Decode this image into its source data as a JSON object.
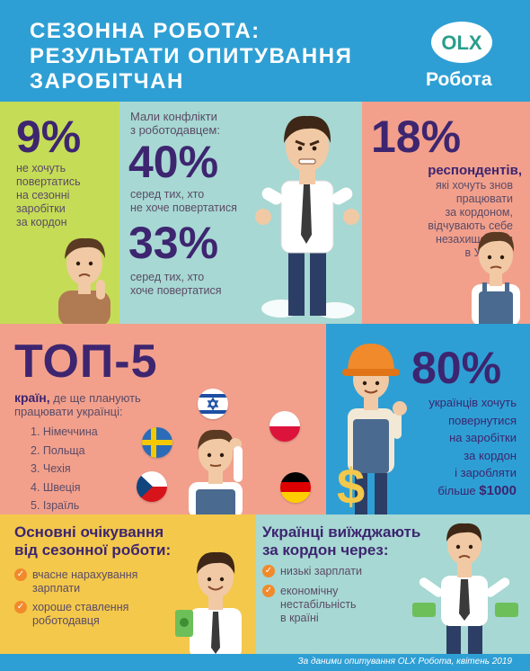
{
  "header": {
    "title_lines": [
      "СЕЗОННА РОБОТА:",
      "РЕЗУЛЬТАТИ ОПИТУВАННЯ",
      "ЗАРОБІТЧАН"
    ],
    "logo_badge": "OLX",
    "logo_text": "Робота"
  },
  "stat_9": {
    "value": "9%",
    "lines": [
      "не хочуть",
      "повертатись",
      "на сезонні",
      "заробітки",
      "за кордон"
    ]
  },
  "conflicts": {
    "intro_lines": [
      "Мали конфлікти",
      "з роботодавцем:"
    ],
    "value_a": "40%",
    "text_a_lines": [
      "серед тих, хто",
      "не хоче повертатися"
    ],
    "value_b": "33%",
    "text_b_lines": [
      "серед тих, хто",
      "хоче повертатися"
    ]
  },
  "stat_18": {
    "value": "18%",
    "head": "респондентів,",
    "lines": [
      "які хочуть знов",
      "працювати",
      "за кордоном,",
      "відчувають себе",
      "незахищеними",
      "в Україні."
    ]
  },
  "top5": {
    "title": "ТОП-5",
    "sub_bold": "країн,",
    "sub_rest": " де ще планують",
    "sub_line2": "працювати українці:",
    "countries": [
      "1. Німеччина",
      "2. Польща",
      "3. Чехія",
      "4. Швеція",
      "5. Ізраїль"
    ]
  },
  "stat_80": {
    "value": "80%",
    "lines": [
      "українців хочуть",
      "повернутися",
      "на заробітки",
      "за кордон",
      "і заробляти"
    ],
    "last_prefix": "більше ",
    "last_amount": "$1000"
  },
  "expectations": {
    "title_lines": [
      "Основні очікування",
      "від сезонної роботи:"
    ],
    "items": [
      {
        "lines": [
          "вчасне нарахування",
          "зарплати"
        ]
      },
      {
        "lines": [
          "хороше ставлення",
          "роботодавця"
        ]
      }
    ]
  },
  "reasons": {
    "title_lines": [
      "Українці виїжджають",
      "за кордон через:"
    ],
    "items": [
      {
        "lines": [
          "низькі зарплати"
        ]
      },
      {
        "lines": [
          "економічну",
          "нестабільність",
          "в країні"
        ]
      }
    ]
  },
  "footer": {
    "source": "За даними опитування OLX Робота, квітень 2019"
  },
  "colors": {
    "header_blue": "#2e9fd4",
    "green": "#c5dc57",
    "teal": "#a7d8d3",
    "salmon": "#f2a08c",
    "yellow": "#f4c84b",
    "number_purple": "#3d2570",
    "check_orange": "#f08a2b"
  }
}
